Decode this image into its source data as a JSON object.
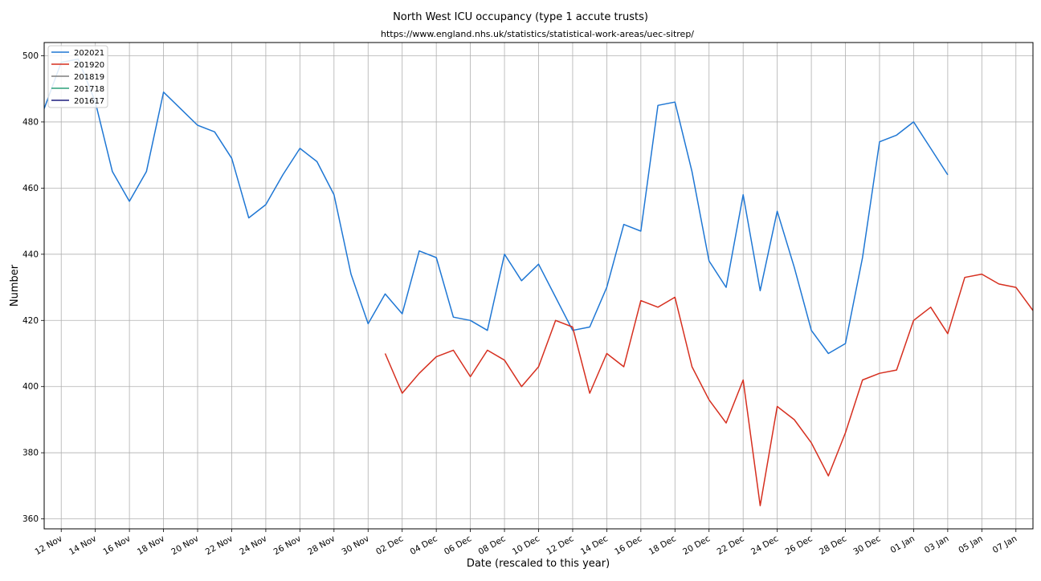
{
  "chart_data": {
    "type": "line",
    "title": "North West ICU occupancy (type 1 accute trusts)",
    "subtitle": "https://www.england.nhs.uk/statistics/statistical-work-areas/uec-sitrep/",
    "xlabel": "Date (rescaled to this year)",
    "ylabel": "Number",
    "x_start": "11 Nov",
    "x_range_days": [
      0,
      58
    ],
    "ylim": [
      357,
      504
    ],
    "y_ticks": [
      360,
      380,
      400,
      420,
      440,
      460,
      480,
      500
    ],
    "x_tick_labels": [
      "12 Nov",
      "14 Nov",
      "16 Nov",
      "18 Nov",
      "20 Nov",
      "22 Nov",
      "24 Nov",
      "26 Nov",
      "28 Nov",
      "30 Nov",
      "02 Dec",
      "04 Dec",
      "06 Dec",
      "08 Dec",
      "10 Dec",
      "12 Dec",
      "14 Dec",
      "16 Dec",
      "18 Dec",
      "20 Dec",
      "22 Dec",
      "24 Dec",
      "26 Dec",
      "28 Dec",
      "30 Dec",
      "01 Jan",
      "03 Jan",
      "05 Jan",
      "07 Jan"
    ],
    "grid": true,
    "legend_position": "top-left",
    "series": [
      {
        "name": "202021",
        "color": "#1f77d4",
        "x": [
          "11 Nov",
          "12 Nov",
          "13 Nov",
          "14 Nov",
          "15 Nov",
          "16 Nov",
          "17 Nov",
          "18 Nov",
          "19 Nov",
          "20 Nov",
          "21 Nov",
          "22 Nov",
          "23 Nov",
          "24 Nov",
          "25 Nov",
          "26 Nov",
          "27 Nov",
          "28 Nov",
          "29 Nov",
          "30 Nov",
          "01 Dec",
          "02 Dec",
          "03 Dec",
          "04 Dec",
          "05 Dec",
          "06 Dec",
          "07 Dec",
          "08 Dec",
          "09 Dec",
          "10 Dec",
          "11 Dec",
          "12 Dec",
          "13 Dec",
          "14 Dec",
          "15 Dec",
          "16 Dec",
          "17 Dec",
          "18 Dec",
          "19 Dec",
          "20 Dec",
          "21 Dec",
          "22 Dec",
          "23 Dec",
          "24 Dec",
          "25 Dec",
          "26 Dec",
          "27 Dec",
          "28 Dec",
          "29 Dec",
          "30 Dec",
          "31 Dec",
          "01 Jan",
          "02 Jan",
          "03 Jan"
        ],
        "y": [
          484,
          498,
          499,
          486,
          465,
          456,
          465,
          489,
          484,
          479,
          477,
          469,
          451,
          455,
          464,
          472,
          468,
          458,
          434,
          419,
          428,
          422,
          441,
          439,
          421,
          420,
          417,
          440,
          432,
          437,
          427,
          417,
          418,
          430,
          449,
          447,
          485,
          486,
          465,
          438,
          430,
          458,
          429,
          453,
          436,
          417,
          410,
          413,
          439,
          474,
          476,
          480,
          472,
          464
        ]
      },
      {
        "name": "201920",
        "color": "#d62f1f",
        "x": [
          "01 Dec",
          "02 Dec",
          "03 Dec",
          "04 Dec",
          "05 Dec",
          "06 Dec",
          "07 Dec",
          "08 Dec",
          "09 Dec",
          "10 Dec",
          "11 Dec",
          "12 Dec",
          "13 Dec",
          "14 Dec",
          "15 Dec",
          "16 Dec",
          "17 Dec",
          "18 Dec",
          "19 Dec",
          "20 Dec",
          "21 Dec",
          "22 Dec",
          "23 Dec",
          "24 Dec",
          "25 Dec",
          "26 Dec",
          "27 Dec",
          "28 Dec",
          "29 Dec",
          "30 Dec",
          "31 Dec",
          "01 Jan",
          "02 Jan",
          "03 Jan",
          "04 Jan",
          "05 Jan",
          "06 Jan",
          "07 Jan",
          "08 Jan"
        ],
        "y": [
          410,
          398,
          404,
          409,
          411,
          403,
          411,
          408,
          400,
          406,
          420,
          418,
          398,
          410,
          406,
          426,
          424,
          427,
          406,
          396,
          389,
          402,
          364,
          394,
          390,
          383,
          373,
          386,
          402,
          404,
          405,
          420,
          424,
          416,
          433,
          434,
          431,
          430,
          423
        ]
      },
      {
        "name": "201819",
        "color": "#7f7f7f",
        "x": [],
        "y": []
      },
      {
        "name": "201718",
        "color": "#2ca07a",
        "x": [],
        "y": []
      },
      {
        "name": "201617",
        "color": "#1f1f7f",
        "x": [],
        "y": []
      }
    ]
  }
}
